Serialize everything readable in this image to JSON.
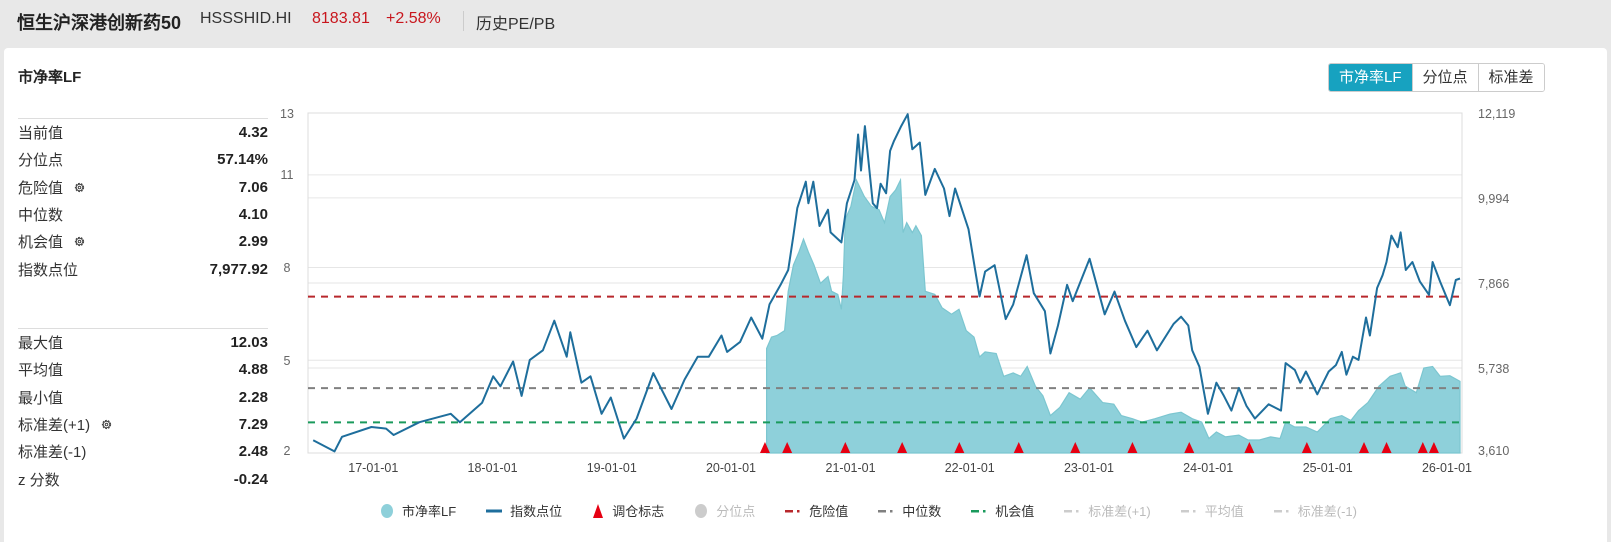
{
  "header": {
    "index_name": "恒生沪深港创新药50",
    "index_code": "HSSSHID.HI",
    "price": "8183.81",
    "change": "+2.58%",
    "link": "历史PE/PB"
  },
  "panel": {
    "title": "市净率LF",
    "tabs": [
      {
        "label": "市净率LF",
        "active": true
      },
      {
        "label": "分位点",
        "active": false
      },
      {
        "label": "标准差",
        "active": false
      }
    ]
  },
  "stats": {
    "group1": [
      {
        "label": "当前值",
        "value": "4.32",
        "icon": null
      },
      {
        "label": "分位点",
        "value": "57.14%",
        "icon": null
      },
      {
        "label": "危险值",
        "value": "7.06",
        "icon": "gear-icon"
      },
      {
        "label": "中位数",
        "value": "4.10",
        "icon": null
      },
      {
        "label": "机会值",
        "value": "2.99",
        "icon": "gear-icon"
      },
      {
        "label": "指数点位",
        "value": "7,977.92",
        "icon": null
      }
    ],
    "group2": [
      {
        "label": "最大值",
        "value": "12.03",
        "icon": null
      },
      {
        "label": "平均值",
        "value": "4.88",
        "icon": null
      },
      {
        "label": "最小值",
        "value": "2.28",
        "icon": null
      },
      {
        "label": "标准差(+1)",
        "value": "7.29",
        "icon": "gear-icon"
      },
      {
        "label": "标准差(-1)",
        "value": "2.48",
        "icon": null
      },
      {
        "label": "z 分数",
        "value": "-0.24",
        "icon": null
      }
    ]
  },
  "chart_data": {
    "type": "line",
    "xlim": [
      "2016-06-15",
      "2026-02-16"
    ],
    "x_ticks": [
      "17-01-01",
      "18-01-01",
      "19-01-01",
      "20-01-01",
      "21-01-01",
      "22-01-01",
      "23-01-01",
      "24-01-01",
      "25-01-01",
      "26-01-01"
    ],
    "y_left": {
      "ylim": [
        2,
        13
      ],
      "ticks": [
        "2",
        "5",
        "8",
        "11",
        "13"
      ]
    },
    "y_right": {
      "ylim": [
        3610,
        12119
      ],
      "ticks": [
        "3,610",
        "5,738",
        "7,866",
        "9,994",
        "12,119"
      ]
    },
    "grid": true,
    "legend_position": "bottom",
    "colors": {
      "pb_fill": "#8ed0da",
      "pb_line": "#7cc6d0",
      "index_line": "#1e6e9c",
      "marker": "#e60012",
      "danger": "#b8282c",
      "median": "#808080",
      "opportunity": "#1a9a5c",
      "disabled": "#cccccc"
    },
    "legend": [
      {
        "name": "市净率LF",
        "symbol": "circle",
        "color": "#8ed0da",
        "enabled": true
      },
      {
        "name": "指数点位",
        "symbol": "line",
        "color": "#1e6e9c",
        "enabled": true
      },
      {
        "name": "调仓标志",
        "symbol": "triangle",
        "color": "#e60012",
        "enabled": true
      },
      {
        "name": "分位点",
        "symbol": "circle",
        "color": "#cccccc",
        "enabled": false
      },
      {
        "name": "危险值",
        "symbol": "dash",
        "color": "#b8282c",
        "enabled": true
      },
      {
        "name": "中位数",
        "symbol": "dash",
        "color": "#808080",
        "enabled": true
      },
      {
        "name": "机会值",
        "symbol": "dash",
        "color": "#1a9a5c",
        "enabled": true
      },
      {
        "name": "标准差(+1)",
        "symbol": "dash",
        "color": "#cccccc",
        "enabled": false
      },
      {
        "name": "平均值",
        "symbol": "dash",
        "color": "#cccccc",
        "enabled": false
      },
      {
        "name": "标准差(-1)",
        "symbol": "dash",
        "color": "#cccccc",
        "enabled": false
      }
    ],
    "reference_lines": [
      {
        "name": "危险值",
        "value": 7.06,
        "axis": "left"
      },
      {
        "name": "中位数",
        "value": 4.1,
        "axis": "left"
      },
      {
        "name": "机会值",
        "value": 2.99,
        "axis": "left"
      }
    ],
    "series": [
      {
        "name": "市净率LF",
        "axis": "left",
        "style": "area",
        "points": [
          [
            "2020-04-19",
            5.38
          ],
          [
            "2020-05-04",
            5.75
          ],
          [
            "2020-05-21",
            5.8
          ],
          [
            "2020-06-13",
            5.96
          ],
          [
            "2020-06-24",
            7.23
          ],
          [
            "2020-07-10",
            8.08
          ],
          [
            "2020-07-27",
            8.5
          ],
          [
            "2020-08-10",
            8.92
          ],
          [
            "2020-08-25",
            8.5
          ],
          [
            "2020-09-11",
            8.08
          ],
          [
            "2020-10-01",
            7.49
          ],
          [
            "2020-10-24",
            7.71
          ],
          [
            "2020-11-04",
            7.23
          ],
          [
            "2020-11-23",
            7.13
          ],
          [
            "2020-12-04",
            6.65
          ],
          [
            "2020-12-10",
            7.76
          ],
          [
            "2020-12-16",
            9.56
          ],
          [
            "2021-01-02",
            9.98
          ],
          [
            "2021-01-19",
            10.83
          ],
          [
            "2021-02-12",
            10.3
          ],
          [
            "2021-03-06",
            9.98
          ],
          [
            "2021-03-29",
            9.87
          ],
          [
            "2021-04-15",
            9.45
          ],
          [
            "2021-05-02",
            10.3
          ],
          [
            "2021-05-19",
            10.51
          ],
          [
            "2021-06-03",
            10.83
          ],
          [
            "2021-06-11",
            9.13
          ],
          [
            "2021-06-22",
            9.45
          ],
          [
            "2021-07-09",
            9.13
          ],
          [
            "2021-07-20",
            9.35
          ],
          [
            "2021-08-06",
            9.03
          ],
          [
            "2021-08-18",
            7.23
          ],
          [
            "2021-09-16",
            7.13
          ],
          [
            "2021-10-08",
            6.7
          ],
          [
            "2021-11-06",
            6.49
          ],
          [
            "2021-11-29",
            6.65
          ],
          [
            "2021-12-21",
            5.96
          ],
          [
            "2022-01-14",
            5.75
          ],
          [
            "2022-01-31",
            5.11
          ],
          [
            "2022-02-17",
            5.27
          ],
          [
            "2022-03-23",
            5.22
          ],
          [
            "2022-04-15",
            4.48
          ],
          [
            "2022-05-14",
            4.59
          ],
          [
            "2022-06-06",
            4.48
          ],
          [
            "2022-06-26",
            4.8
          ],
          [
            "2022-07-21",
            4.16
          ],
          [
            "2022-08-13",
            3.85
          ],
          [
            "2022-09-05",
            3.21
          ],
          [
            "2022-10-04",
            3.48
          ],
          [
            "2022-11-01",
            3.95
          ],
          [
            "2022-12-05",
            3.74
          ],
          [
            "2023-01-03",
            4.11
          ],
          [
            "2023-02-12",
            3.63
          ],
          [
            "2023-03-18",
            3.58
          ],
          [
            "2023-04-10",
            3.21
          ],
          [
            "2023-05-14",
            3.11
          ],
          [
            "2023-06-12",
            3.0
          ],
          [
            "2023-07-22",
            3.11
          ],
          [
            "2023-09-06",
            3.26
          ],
          [
            "2023-10-10",
            3.32
          ],
          [
            "2023-11-13",
            3.11
          ],
          [
            "2023-12-12",
            3.0
          ],
          [
            "2024-01-03",
            2.47
          ],
          [
            "2024-01-26",
            2.68
          ],
          [
            "2024-02-23",
            2.52
          ],
          [
            "2024-04-04",
            2.58
          ],
          [
            "2024-05-02",
            2.42
          ],
          [
            "2024-06-06",
            2.42
          ],
          [
            "2024-07-10",
            2.52
          ],
          [
            "2024-08-08",
            2.47
          ],
          [
            "2024-08-25",
            3.0
          ],
          [
            "2024-09-22",
            2.84
          ],
          [
            "2024-10-26",
            2.84
          ],
          [
            "2024-11-30",
            2.68
          ],
          [
            "2025-01-09",
            3.11
          ],
          [
            "2025-02-13",
            3.21
          ],
          [
            "2025-03-13",
            3.05
          ],
          [
            "2025-04-05",
            3.37
          ],
          [
            "2025-05-04",
            3.63
          ],
          [
            "2025-06-07",
            4.16
          ],
          [
            "2025-07-11",
            4.48
          ],
          [
            "2025-08-12",
            4.59
          ],
          [
            "2025-08-26",
            4.16
          ],
          [
            "2025-09-29",
            3.95
          ],
          [
            "2025-10-22",
            4.75
          ],
          [
            "2025-11-18",
            4.8
          ],
          [
            "2025-12-11",
            4.48
          ],
          [
            "2026-01-10",
            4.5
          ],
          [
            "2026-02-10",
            4.32
          ]
        ]
      },
      {
        "name": "指数点位",
        "axis": "right",
        "style": "line",
        "points": [
          [
            "2016-07-01",
            3930
          ],
          [
            "2016-09-04",
            3650
          ],
          [
            "2016-09-27",
            4015
          ],
          [
            "2016-12-26",
            4260
          ],
          [
            "2017-02-09",
            4220
          ],
          [
            "2017-03-04",
            4060
          ],
          [
            "2017-05-22",
            4380
          ],
          [
            "2017-08-26",
            4590
          ],
          [
            "2017-09-23",
            4380
          ],
          [
            "2017-11-30",
            4870
          ],
          [
            "2018-01-03",
            5530
          ],
          [
            "2018-01-25",
            5280
          ],
          [
            "2018-03-05",
            5900
          ],
          [
            "2018-03-31",
            5040
          ],
          [
            "2018-04-25",
            5940
          ],
          [
            "2018-06-04",
            6180
          ],
          [
            "2018-07-09",
            6920
          ],
          [
            "2018-08-16",
            6020
          ],
          [
            "2018-08-27",
            6630
          ],
          [
            "2018-09-30",
            5370
          ],
          [
            "2018-10-28",
            5530
          ],
          [
            "2018-12-01",
            4590
          ],
          [
            "2018-12-29",
            5000
          ],
          [
            "2019-02-07",
            3970
          ],
          [
            "2019-03-18",
            4470
          ],
          [
            "2019-05-08",
            5610
          ],
          [
            "2019-07-03",
            4710
          ],
          [
            "2019-08-12",
            5450
          ],
          [
            "2019-09-21",
            6020
          ],
          [
            "2019-10-25",
            6020
          ],
          [
            "2019-12-03",
            6550
          ],
          [
            "2019-12-20",
            6140
          ],
          [
            "2020-01-29",
            6390
          ],
          [
            "2020-03-03",
            7000
          ],
          [
            "2020-04-06",
            6470
          ],
          [
            "2020-04-28",
            7330
          ],
          [
            "2020-06-01",
            7820
          ],
          [
            "2020-06-24",
            8190
          ],
          [
            "2020-07-10",
            9050
          ],
          [
            "2020-07-22",
            9740
          ],
          [
            "2020-08-17",
            10400
          ],
          [
            "2020-08-25",
            9860
          ],
          [
            "2020-09-09",
            10400
          ],
          [
            "2020-09-28",
            9290
          ],
          [
            "2020-10-24",
            9700
          ],
          [
            "2020-11-01",
            9130
          ],
          [
            "2020-12-04",
            8880
          ],
          [
            "2020-12-21",
            9860
          ],
          [
            "2021-01-13",
            10440
          ],
          [
            "2021-01-24",
            11580
          ],
          [
            "2021-02-02",
            10680
          ],
          [
            "2021-02-14",
            11790
          ],
          [
            "2021-03-10",
            9860
          ],
          [
            "2021-03-23",
            9740
          ],
          [
            "2021-04-03",
            10350
          ],
          [
            "2021-04-20",
            10110
          ],
          [
            "2021-05-02",
            11170
          ],
          [
            "2021-05-14",
            11420
          ],
          [
            "2021-06-05",
            11790
          ],
          [
            "2021-06-25",
            12090
          ],
          [
            "2021-07-09",
            11210
          ],
          [
            "2021-08-01",
            11380
          ],
          [
            "2021-08-18",
            10070
          ],
          [
            "2021-09-16",
            10720
          ],
          [
            "2021-10-14",
            10230
          ],
          [
            "2021-10-31",
            9540
          ],
          [
            "2021-11-17",
            10230
          ],
          [
            "2021-12-28",
            9210
          ],
          [
            "2022-01-20",
            8060
          ],
          [
            "2022-01-31",
            7530
          ],
          [
            "2022-02-17",
            8150
          ],
          [
            "2022-03-18",
            8310
          ],
          [
            "2022-04-21",
            6960
          ],
          [
            "2022-05-14",
            7330
          ],
          [
            "2022-06-24",
            8560
          ],
          [
            "2022-07-16",
            7610
          ],
          [
            "2022-08-19",
            7160
          ],
          [
            "2022-09-05",
            6100
          ],
          [
            "2022-09-28",
            6800
          ],
          [
            "2022-10-26",
            7820
          ],
          [
            "2022-11-12",
            7410
          ],
          [
            "2023-01-03",
            8470
          ],
          [
            "2023-02-18",
            7080
          ],
          [
            "2023-03-20",
            7650
          ],
          [
            "2023-04-21",
            6920
          ],
          [
            "2023-05-26",
            6260
          ],
          [
            "2023-06-29",
            6670
          ],
          [
            "2023-07-28",
            6180
          ],
          [
            "2023-09-17",
            6840
          ],
          [
            "2023-10-10",
            7020
          ],
          [
            "2023-11-01",
            6800
          ],
          [
            "2023-11-13",
            6180
          ],
          [
            "2023-12-05",
            5770
          ],
          [
            "2023-12-31",
            4590
          ],
          [
            "2024-01-26",
            5370
          ],
          [
            "2024-02-18",
            5040
          ],
          [
            "2024-03-12",
            4670
          ],
          [
            "2024-04-04",
            5240
          ],
          [
            "2024-04-27",
            4790
          ],
          [
            "2024-05-23",
            4470
          ],
          [
            "2024-07-04",
            4830
          ],
          [
            "2024-08-11",
            4670
          ],
          [
            "2024-08-25",
            5860
          ],
          [
            "2024-09-22",
            5690
          ],
          [
            "2024-10-09",
            5370
          ],
          [
            "2024-10-26",
            5650
          ],
          [
            "2024-11-30",
            5080
          ],
          [
            "2025-01-04",
            5650
          ],
          [
            "2025-01-26",
            5810
          ],
          [
            "2025-02-13",
            6140
          ],
          [
            "2025-02-27",
            5570
          ],
          [
            "2025-03-19",
            6020
          ],
          [
            "2025-04-05",
            5940
          ],
          [
            "2025-04-28",
            7000
          ],
          [
            "2025-05-10",
            6550
          ],
          [
            "2025-06-01",
            7740
          ],
          [
            "2025-06-18",
            8060
          ],
          [
            "2025-06-30",
            8390
          ],
          [
            "2025-07-15",
            9050
          ],
          [
            "2025-08-03",
            8760
          ],
          [
            "2025-08-12",
            9130
          ],
          [
            "2025-08-28",
            8190
          ],
          [
            "2025-09-17",
            8390
          ],
          [
            "2025-10-10",
            7900
          ],
          [
            "2025-11-07",
            7570
          ],
          [
            "2025-11-18",
            8390
          ],
          [
            "2025-12-11",
            7900
          ],
          [
            "2026-01-10",
            7310
          ],
          [
            "2026-01-28",
            7940
          ],
          [
            "2026-02-10",
            7978
          ]
        ]
      }
    ],
    "rebalance_markers": [
      "2020-04-14",
      "2020-06-21",
      "2020-12-16",
      "2021-06-08",
      "2021-11-30",
      "2022-05-31",
      "2022-11-20",
      "2023-05-14",
      "2023-11-04",
      "2024-05-06",
      "2024-10-29",
      "2025-04-22",
      "2025-06-30",
      "2025-10-19",
      "2025-11-22"
    ]
  }
}
